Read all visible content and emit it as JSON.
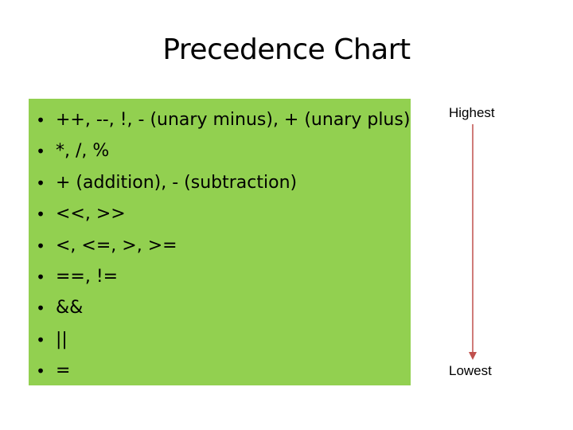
{
  "slide": {
    "title": "Precedence Chart",
    "bullet_symbol": "•",
    "operators": [
      "++, --, !, - (unary minus), + (unary plus)",
      "*, /, %",
      "+ (addition), - (subtraction)",
      "<<, >>",
      "<, <=, >, >=",
      "==, !=",
      "&&",
      "||",
      "="
    ],
    "arrow": {
      "top_label": "Highest",
      "bottom_label": "Lowest",
      "color": "#c0504d"
    },
    "box_color": "#92d050"
  }
}
